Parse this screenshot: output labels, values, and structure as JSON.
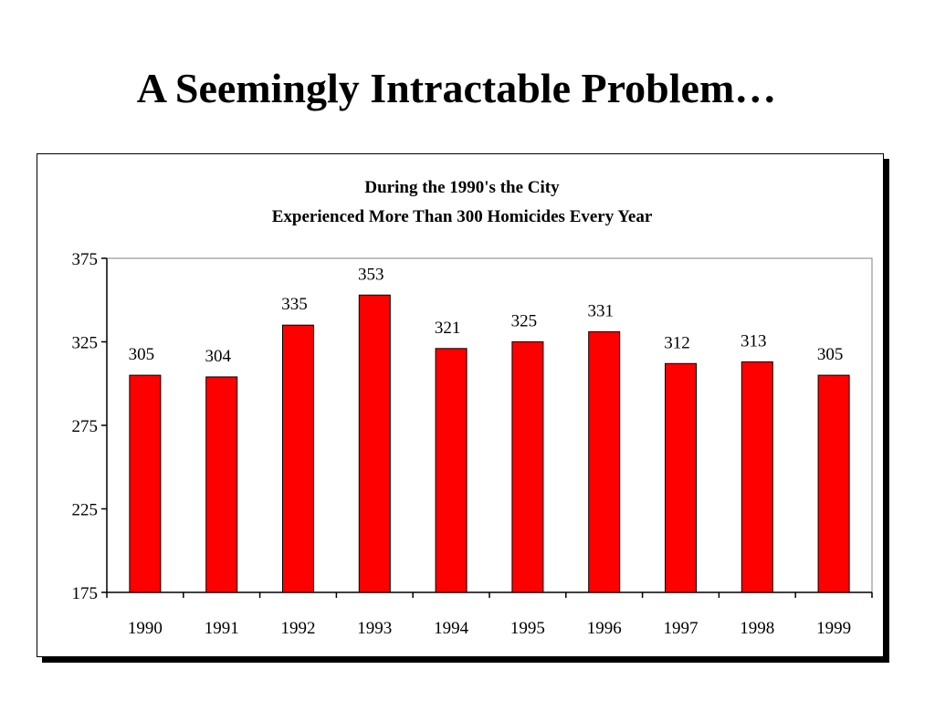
{
  "slide": {
    "title": "A Seemingly Intractable Problem…"
  },
  "colors": {
    "bar": "#ff0000",
    "bar_outline": "#000000",
    "axis": "#000000",
    "plot_border": "#808080"
  },
  "chart_data": {
    "type": "bar",
    "title_lines": [
      "During the 1990's the City",
      "Experienced More Than 300 Homicides Every Year"
    ],
    "categories": [
      "1990",
      "1991",
      "1992",
      "1993",
      "1994",
      "1995",
      "1996",
      "1997",
      "1998",
      "1999"
    ],
    "values": [
      305,
      304,
      335,
      353,
      321,
      325,
      331,
      312,
      313,
      305
    ],
    "data_labels": [
      "305",
      "304",
      "335",
      "353",
      "321",
      "325",
      "331",
      "312",
      "313",
      "305"
    ],
    "ylim": [
      175,
      375
    ],
    "yticks": [
      "175",
      "225",
      "275",
      "325",
      "375"
    ],
    "xlabel": "",
    "ylabel": "",
    "grid": false,
    "legend": "none"
  }
}
